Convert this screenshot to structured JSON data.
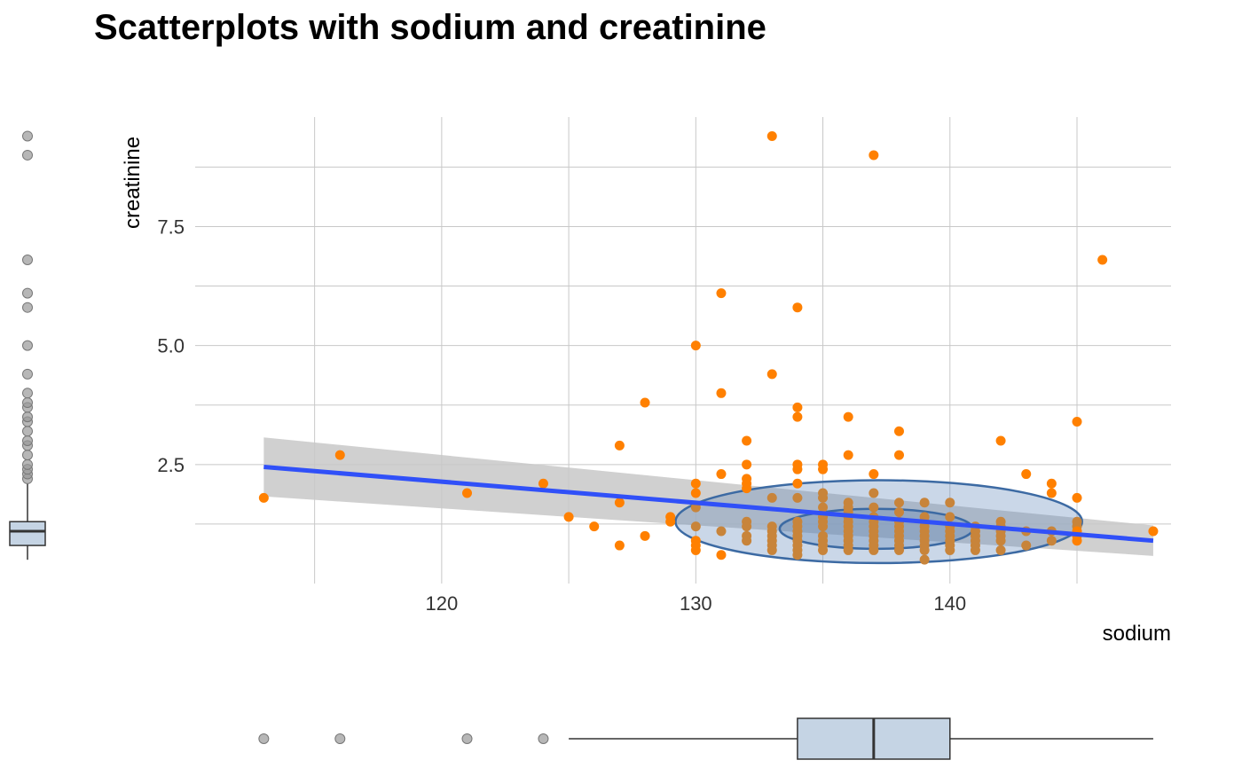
{
  "chart_data": {
    "type": "scatter",
    "title": "Scatterplots with sodium and creatinine",
    "xlabel": "sodium",
    "ylabel": "creatinine",
    "xlim": [
      110.3,
      148.7
    ],
    "ylim": [
      0,
      9.8
    ],
    "x_ticks": [
      120,
      130,
      140
    ],
    "y_ticks": [
      2.5,
      5.0,
      7.5
    ],
    "x_tick_labels": [
      "120",
      "130",
      "140"
    ],
    "y_tick_labels": [
      "2.5",
      "5.0",
      "7.5"
    ],
    "grid": true,
    "colors": {
      "points": "#ff8000",
      "dense_points": "#c8843a",
      "trend_line": "#3050f8",
      "confidence_band": "#c8c8c8",
      "ellipse_fill": "#5b84b8",
      "ellipse_stroke": "#3c6aa3",
      "boxplot_fill": "#c5d4e4",
      "marginal_outliers": "#999999"
    },
    "trend": {
      "x": [
        113,
        148
      ],
      "y": [
        2.45,
        0.9
      ],
      "band_lower": [
        1.83,
        0.58
      ],
      "band_upper": [
        3.07,
        1.22
      ]
    },
    "ellipses": [
      {
        "level": "outer",
        "cx": 137.2,
        "cy": 1.3,
        "rx": 8.0,
        "ry": 0.87
      },
      {
        "level": "inner",
        "cx": 137.1,
        "cy": 1.15,
        "rx": 3.8,
        "ry": 0.42
      }
    ],
    "points": [
      [
        113,
        1.8
      ],
      [
        116,
        2.7
      ],
      [
        121,
        1.9
      ],
      [
        124,
        2.1
      ],
      [
        125,
        1.4
      ],
      [
        126,
        1.2
      ],
      [
        127,
        2.9
      ],
      [
        127,
        1.7
      ],
      [
        127,
        0.8
      ],
      [
        128,
        3.8
      ],
      [
        128,
        1.0
      ],
      [
        129,
        1.4
      ],
      [
        129,
        1.3
      ],
      [
        130,
        5.0
      ],
      [
        130,
        2.1
      ],
      [
        130,
        1.9
      ],
      [
        130,
        1.6
      ],
      [
        130,
        1.2
      ],
      [
        130,
        0.9
      ],
      [
        130,
        0.8
      ],
      [
        130,
        0.7
      ],
      [
        131,
        6.1
      ],
      [
        131,
        4.0
      ],
      [
        131,
        2.3
      ],
      [
        131,
        1.1
      ],
      [
        131,
        0.6
      ],
      [
        132,
        3.0
      ],
      [
        132,
        2.5
      ],
      [
        132,
        2.2
      ],
      [
        132,
        2.1
      ],
      [
        132,
        2.0
      ],
      [
        132,
        1.3
      ],
      [
        132,
        1.2
      ],
      [
        132,
        1.0
      ],
      [
        132,
        0.9
      ],
      [
        133,
        9.4
      ],
      [
        133,
        4.4
      ],
      [
        133,
        1.8
      ],
      [
        133,
        1.2
      ],
      [
        133,
        1.1
      ],
      [
        133,
        1.0
      ],
      [
        133,
        0.9
      ],
      [
        133,
        0.8
      ],
      [
        133,
        0.7
      ],
      [
        134,
        5.8
      ],
      [
        134,
        3.7
      ],
      [
        134,
        3.5
      ],
      [
        134,
        2.5
      ],
      [
        134,
        2.4
      ],
      [
        134,
        2.1
      ],
      [
        134,
        1.8
      ],
      [
        134,
        1.3
      ],
      [
        134,
        1.2
      ],
      [
        134,
        1.1
      ],
      [
        134,
        1.0
      ],
      [
        134,
        0.9
      ],
      [
        134,
        0.8
      ],
      [
        134,
        0.7
      ],
      [
        134,
        0.6
      ],
      [
        135,
        2.5
      ],
      [
        135,
        2.4
      ],
      [
        135,
        1.9
      ],
      [
        135,
        1.8
      ],
      [
        135,
        1.6
      ],
      [
        135,
        1.4
      ],
      [
        135,
        1.3
      ],
      [
        135,
        1.2
      ],
      [
        135,
        1.0
      ],
      [
        135,
        0.9
      ],
      [
        135,
        0.8
      ],
      [
        135,
        0.7
      ],
      [
        136,
        3.5
      ],
      [
        136,
        2.7
      ],
      [
        136,
        1.7
      ],
      [
        136,
        1.6
      ],
      [
        136,
        1.5
      ],
      [
        136,
        1.4
      ],
      [
        136,
        1.3
      ],
      [
        136,
        1.2
      ],
      [
        136,
        1.1
      ],
      [
        136,
        1.0
      ],
      [
        136,
        0.9
      ],
      [
        136,
        0.8
      ],
      [
        136,
        0.7
      ],
      [
        137,
        9.0
      ],
      [
        137,
        2.3
      ],
      [
        137,
        1.9
      ],
      [
        137,
        1.6
      ],
      [
        137,
        1.4
      ],
      [
        137,
        1.3
      ],
      [
        137,
        1.2
      ],
      [
        137,
        1.1
      ],
      [
        137,
        1.0
      ],
      [
        137,
        0.9
      ],
      [
        137,
        0.8
      ],
      [
        137,
        0.7
      ],
      [
        138,
        3.2
      ],
      [
        138,
        2.7
      ],
      [
        138,
        1.7
      ],
      [
        138,
        1.5
      ],
      [
        138,
        1.3
      ],
      [
        138,
        1.2
      ],
      [
        138,
        1.1
      ],
      [
        138,
        1.0
      ],
      [
        138,
        0.9
      ],
      [
        138,
        0.8
      ],
      [
        138,
        0.7
      ],
      [
        139,
        1.7
      ],
      [
        139,
        1.4
      ],
      [
        139,
        1.3
      ],
      [
        139,
        1.2
      ],
      [
        139,
        1.1
      ],
      [
        139,
        1.0
      ],
      [
        139,
        0.9
      ],
      [
        139,
        0.8
      ],
      [
        139,
        0.7
      ],
      [
        139,
        0.5
      ],
      [
        140,
        1.7
      ],
      [
        140,
        1.4
      ],
      [
        140,
        1.2
      ],
      [
        140,
        1.1
      ],
      [
        140,
        1.0
      ],
      [
        140,
        0.9
      ],
      [
        140,
        0.8
      ],
      [
        140,
        0.7
      ],
      [
        141,
        1.2
      ],
      [
        141,
        1.1
      ],
      [
        141,
        1.0
      ],
      [
        141,
        0.9
      ],
      [
        141,
        0.8
      ],
      [
        141,
        0.7
      ],
      [
        142,
        3.0
      ],
      [
        142,
        1.3
      ],
      [
        142,
        1.2
      ],
      [
        142,
        1.1
      ],
      [
        142,
        1.0
      ],
      [
        142,
        0.9
      ],
      [
        142,
        0.7
      ],
      [
        143,
        2.3
      ],
      [
        143,
        1.1
      ],
      [
        143,
        0.8
      ],
      [
        144,
        2.1
      ],
      [
        144,
        1.9
      ],
      [
        144,
        1.1
      ],
      [
        144,
        0.9
      ],
      [
        145,
        3.4
      ],
      [
        145,
        1.8
      ],
      [
        145,
        1.3
      ],
      [
        145,
        1.2
      ],
      [
        145,
        1.1
      ],
      [
        145,
        1.0
      ],
      [
        145,
        0.9
      ],
      [
        146,
        6.8
      ],
      [
        148,
        1.1
      ]
    ],
    "marginal_x_boxplot": {
      "q1": 134,
      "median": 137,
      "q3": 140,
      "whisker_low": 125,
      "whisker_high": 148,
      "outliers": [
        113,
        116,
        121,
        124
      ]
    },
    "marginal_y_boxplot": {
      "q1": 0.8,
      "median": 1.1,
      "q3": 1.3,
      "whisker_low": 0.5,
      "whisker_high": 2.1,
      "outliers": [
        2.2,
        2.3,
        2.4,
        2.5,
        2.7,
        2.9,
        3.0,
        3.2,
        3.4,
        3.5,
        3.7,
        3.8,
        4.0,
        4.4,
        5.0,
        5.8,
        6.1,
        6.8,
        9.0,
        9.4
      ]
    }
  }
}
